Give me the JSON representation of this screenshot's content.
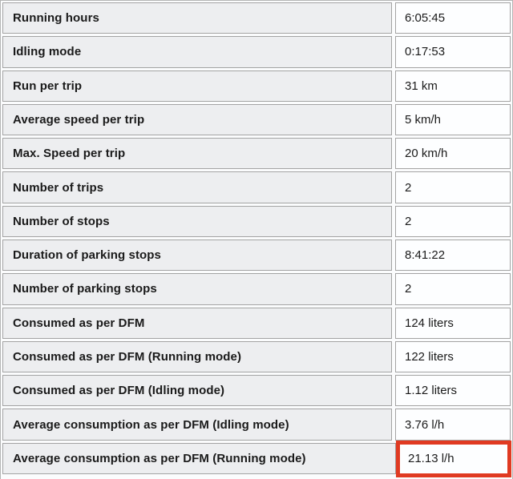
{
  "report": {
    "type": "statistics-table",
    "columns": [
      "parameter",
      "value"
    ],
    "rows": [
      {
        "label": "Running hours",
        "value": "6:05:45",
        "highlighted": false
      },
      {
        "label": "Idling mode",
        "value": "0:17:53",
        "highlighted": false
      },
      {
        "label": "Run per trip",
        "value": "31 km",
        "highlighted": false
      },
      {
        "label": "Average speed per trip",
        "value": "5 km/h",
        "highlighted": false
      },
      {
        "label": "Max. Speed per trip",
        "value": "20 km/h",
        "highlighted": false
      },
      {
        "label": "Number of trips",
        "value": "2",
        "highlighted": false
      },
      {
        "label": "Number of stops",
        "value": "2",
        "highlighted": false
      },
      {
        "label": "Duration of parking stops",
        "value": "8:41:22",
        "highlighted": false
      },
      {
        "label": "Number of parking stops",
        "value": "2",
        "highlighted": false
      },
      {
        "label": "Consumed as per DFM",
        "value": "124 liters",
        "highlighted": false
      },
      {
        "label": "Consumed as per DFM (Running mode)",
        "value": "122 liters",
        "highlighted": false
      },
      {
        "label": "Consumed as per DFM (Idling mode)",
        "value": "1.12 liters",
        "highlighted": false
      },
      {
        "label": "Average consumption as per DFM (Idling mode)",
        "value": "3.76 l/h",
        "highlighted": false
      },
      {
        "label": "Average consumption as per DFM (Running mode)",
        "value": "21.13 l/h",
        "highlighted": true
      }
    ],
    "highlight_note": "red annotation box around highlighted value cell"
  },
  "colors": {
    "label_cell_bg": "#edeef0",
    "value_cell_bg": "#fdfeff",
    "cell_border": "#a3a3a3",
    "outer_border": "#b5b5b5",
    "highlight_border": "#e03a22",
    "text": "#1a1a1a"
  }
}
